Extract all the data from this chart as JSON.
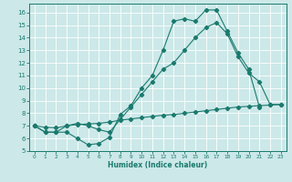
{
  "background_color": "#cce8e8",
  "grid_color": "#aacccc",
  "line_color": "#1a7a6e",
  "xlabel": "Humidex (Indice chaleur)",
  "xlim": [
    -0.5,
    23.5
  ],
  "ylim": [
    5,
    16.7
  ],
  "xticks": [
    0,
    1,
    2,
    3,
    4,
    5,
    6,
    7,
    8,
    9,
    10,
    11,
    12,
    13,
    14,
    15,
    16,
    17,
    18,
    19,
    20,
    21,
    22,
    23
  ],
  "yticks": [
    5,
    6,
    7,
    8,
    9,
    10,
    11,
    12,
    13,
    14,
    15,
    16
  ],
  "curve1_x": [
    0,
    1,
    2,
    3,
    4,
    5,
    6,
    7,
    8,
    9,
    10,
    11,
    12,
    13,
    14,
    15,
    16,
    17,
    18,
    19,
    20,
    21
  ],
  "curve1_y": [
    7.0,
    6.5,
    6.5,
    6.5,
    6.0,
    5.5,
    5.6,
    6.1,
    7.9,
    8.6,
    10.0,
    11.0,
    13.0,
    15.3,
    15.5,
    15.3,
    16.2,
    16.2,
    14.5,
    12.8,
    11.5,
    8.5
  ],
  "curve2_x": [
    0,
    1,
    2,
    3,
    4,
    5,
    6,
    7,
    8,
    9,
    10,
    11,
    12,
    13,
    14,
    15,
    16,
    17,
    18,
    19,
    20,
    21,
    22,
    23
  ],
  "curve2_y": [
    7.0,
    6.5,
    6.5,
    7.0,
    7.2,
    7.0,
    6.7,
    6.5,
    7.5,
    8.5,
    9.5,
    10.5,
    11.5,
    12.0,
    13.0,
    14.0,
    14.8,
    15.2,
    14.3,
    12.5,
    11.2,
    10.5,
    8.7,
    8.7
  ],
  "curve3_x": [
    0,
    1,
    2,
    3,
    4,
    5,
    6,
    7,
    8,
    9,
    10,
    11,
    12,
    13,
    14,
    15,
    16,
    17,
    18,
    19,
    20,
    21,
    22,
    23
  ],
  "curve3_y": [
    7.0,
    6.9,
    6.85,
    7.0,
    7.1,
    7.15,
    7.2,
    7.3,
    7.45,
    7.55,
    7.65,
    7.75,
    7.85,
    7.9,
    8.0,
    8.1,
    8.2,
    8.3,
    8.4,
    8.5,
    8.55,
    8.6,
    8.65,
    8.7
  ]
}
